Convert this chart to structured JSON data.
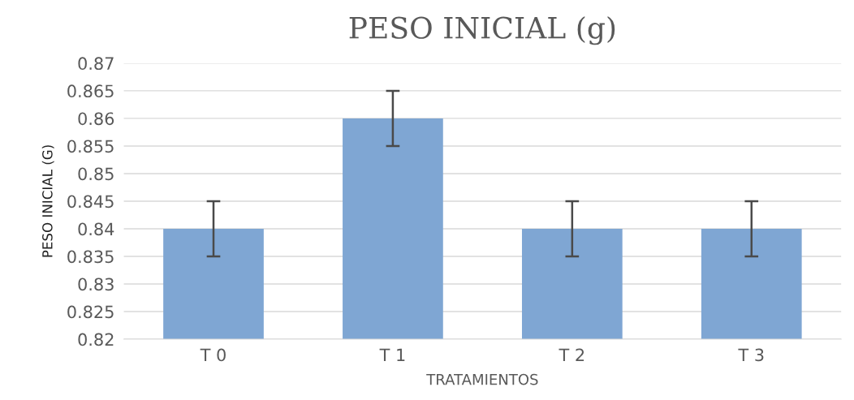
{
  "chart_data": {
    "type": "bar",
    "title": "PESO INICIAL (g)",
    "xlabel": "TRATAMIENTOS",
    "ylabel": "PESO INICIAL (G)",
    "categories": [
      "T 0",
      "T 1",
      "T 2",
      "T 3"
    ],
    "values": [
      0.84,
      0.86,
      0.84,
      0.84
    ],
    "errors": [
      0.005,
      0.005,
      0.005,
      0.005
    ],
    "color": "#7fa6d3",
    "ylim": [
      0.82,
      0.87
    ],
    "yticks": [
      0.82,
      0.825,
      0.83,
      0.835,
      0.84,
      0.845,
      0.85,
      0.855,
      0.86,
      0.865,
      0.87
    ],
    "grid": "y"
  }
}
